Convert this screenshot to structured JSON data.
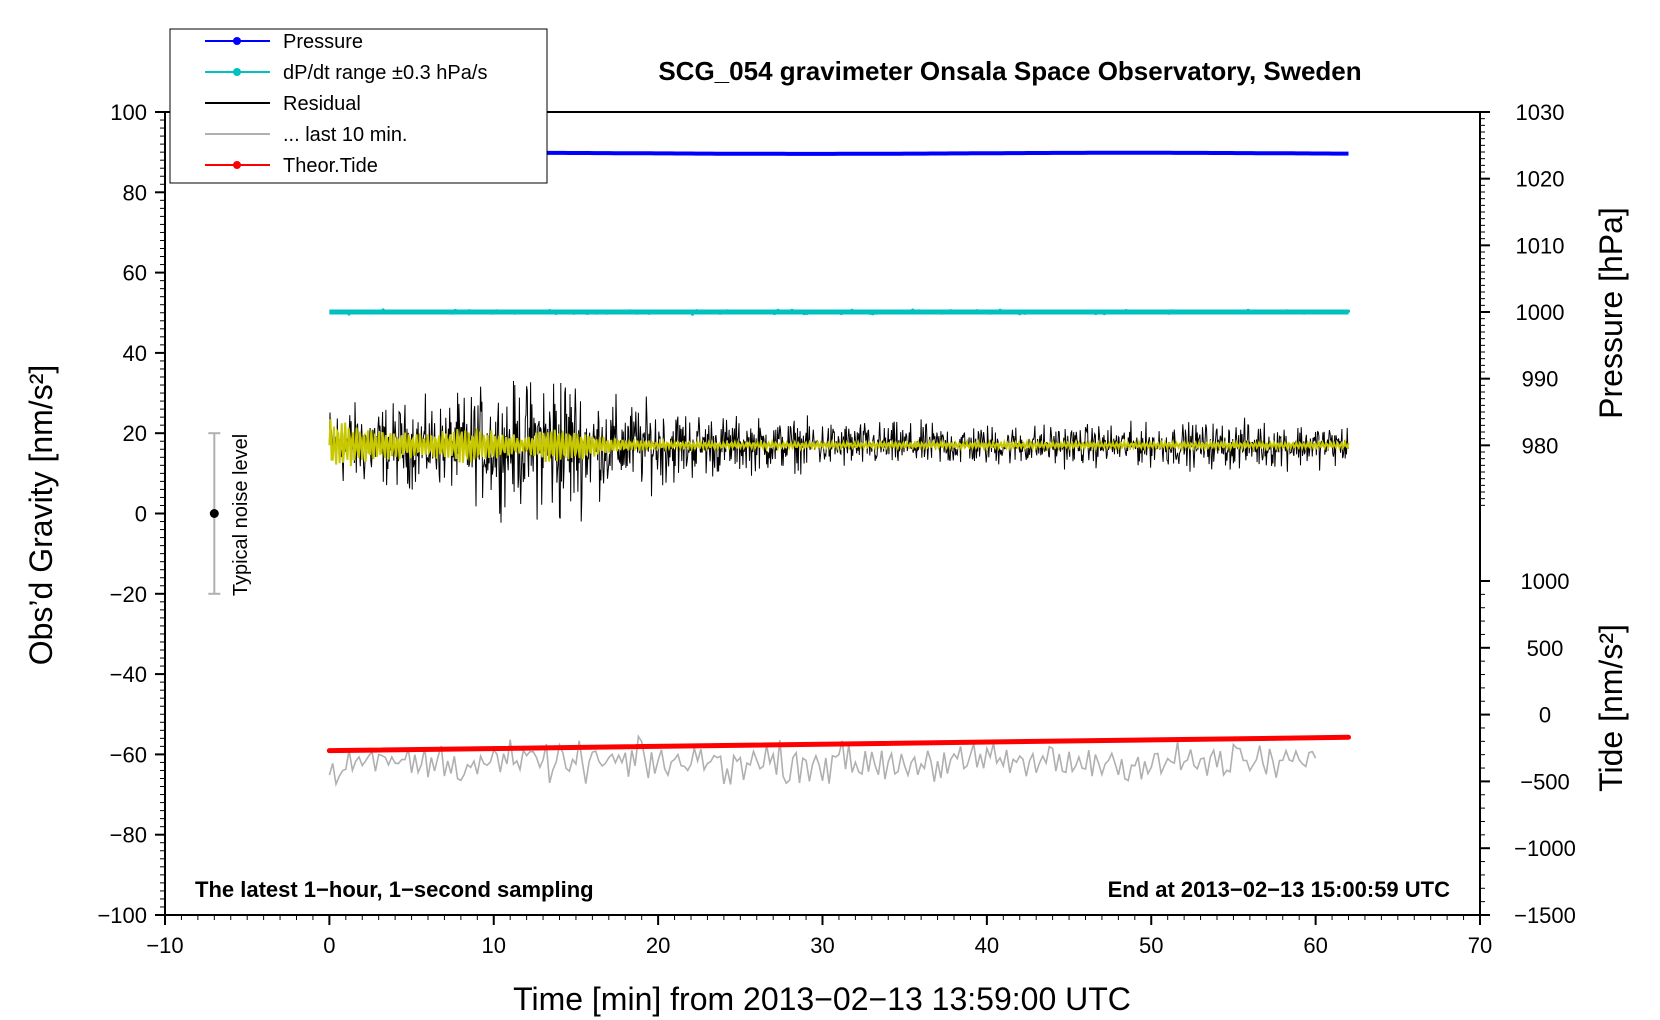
{
  "chart_data": {
    "type": "line",
    "title": "SCG_054 gravimeter Onsala Space Observatory, Sweden",
    "xlabel": "Time [min] from 2013−02−13 13:59:00 UTC",
    "ylabel_left": "Obs’d Gravity [nm/s²]",
    "ylabel_right_pressure": "Pressure [hPa]",
    "ylabel_right_tide": "Tide [nm/s²]",
    "xlim": [
      -10,
      70
    ],
    "ylim": [
      -100,
      100
    ],
    "pressure_lim": [
      1030,
      970
    ],
    "tide_lim": [
      -1500,
      1000
    ],
    "x_ticks": [
      -10,
      0,
      10,
      20,
      30,
      40,
      50,
      60,
      70
    ],
    "x_tick_labels": [
      "−10",
      "0",
      "10",
      "20",
      "30",
      "40",
      "50",
      "60",
      "70"
    ],
    "y_ticks": [
      100,
      80,
      60,
      40,
      20,
      0,
      -20,
      -40,
      -60,
      -80,
      -100
    ],
    "y_tick_labels": [
      "100",
      "80",
      "60",
      "40",
      "20",
      "0",
      "−20",
      "−40",
      "−60",
      "−80",
      "−100"
    ],
    "pressure_ticks": [
      1030,
      1020,
      1010,
      1000,
      990,
      980
    ],
    "pressure_tick_labels": [
      "1030",
      "1020",
      "1010",
      "1000",
      "990",
      "980"
    ],
    "tide_ticks": [
      1000,
      500,
      0,
      -500,
      -1000,
      -1500
    ],
    "tide_tick_labels": [
      "1000",
      "500",
      "0",
      "−500",
      "−1000",
      "−1500"
    ],
    "legend": [
      {
        "label": "Pressure",
        "color": "#0000ff",
        "marker": true
      },
      {
        "label": "dP/dt range ±0.3 hPa/s",
        "color": "#00c0c0",
        "marker": true
      },
      {
        "label": "Residual",
        "color": "#000000",
        "marker": false
      },
      {
        "label": "... last 10 min.",
        "color": "#b0b0b0",
        "marker": false
      },
      {
        "label": "Theor.Tide",
        "color": "#ff0000",
        "marker": true
      }
    ],
    "annotation_left": "The latest 1−hour, 1−second sampling",
    "annotation_right": "End at 2013−02−13 15:00:59 UTC",
    "noise_label": "Typical noise level",
    "noise_bar": {
      "x": -7,
      "center": 0,
      "low": -20,
      "high": 20
    },
    "series": [
      {
        "name": "Pressure",
        "axis": "pressure",
        "color": "#0000ff",
        "x_range": [
          0,
          62
        ],
        "level": 1023.8
      },
      {
        "name": "dP/dt range",
        "axis": "pressure",
        "color": "#00c0c0",
        "x_range": [
          0,
          62
        ],
        "level": 1000
      },
      {
        "name": "Residual",
        "axis": "gravity",
        "color": "#000000",
        "x_range": [
          0,
          62
        ],
        "mean": 17,
        "envelope": [
          [
            0,
            12
          ],
          [
            2,
            12
          ],
          [
            5,
            12
          ],
          [
            7,
            12
          ],
          [
            9,
            16
          ],
          [
            12,
            18
          ],
          [
            14,
            25
          ],
          [
            16,
            15
          ],
          [
            18,
            13
          ],
          [
            20,
            12
          ],
          [
            22,
            10
          ],
          [
            25,
            8
          ],
          [
            30,
            7
          ],
          [
            40,
            6
          ],
          [
            50,
            6
          ],
          [
            55,
            7
          ],
          [
            62,
            6
          ]
        ]
      },
      {
        "name": "Residual (smoothed)",
        "axis": "gravity",
        "color": "#c8c800",
        "x_range": [
          0,
          62
        ],
        "mean": 17,
        "envelope": [
          [
            0,
            7
          ],
          [
            3,
            4
          ],
          [
            6,
            3
          ],
          [
            8,
            5
          ],
          [
            10,
            4
          ],
          [
            12,
            2
          ],
          [
            13,
            5
          ],
          [
            15,
            4
          ],
          [
            17,
            2
          ],
          [
            20,
            1
          ],
          [
            25,
            0.8
          ],
          [
            62,
            0.8
          ]
        ]
      },
      {
        "name": "... last 10 min.",
        "axis": "gravity",
        "color": "#b0b0b0",
        "x_range": [
          0,
          60
        ],
        "mean": -62,
        "amplitude": 5
      },
      {
        "name": "Theor.Tide",
        "axis": "tide",
        "color": "#ff0000",
        "x": [
          0,
          62
        ],
        "values": [
          -270,
          -170
        ]
      }
    ]
  }
}
